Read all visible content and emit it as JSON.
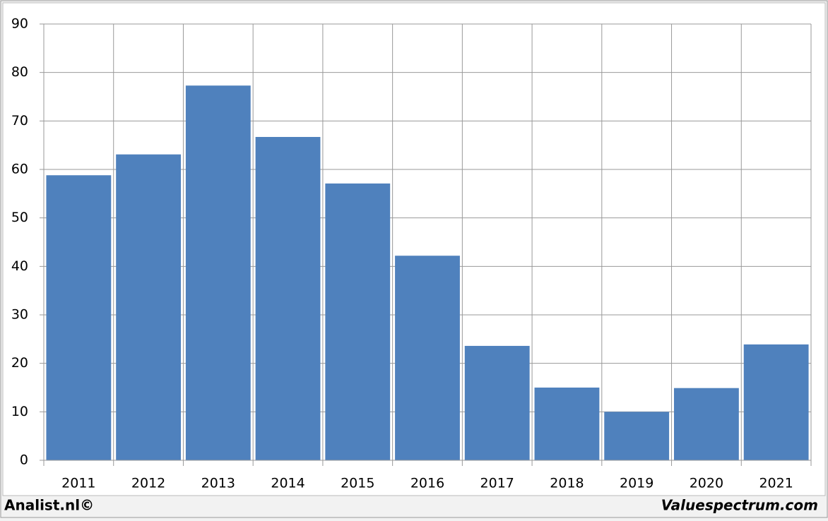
{
  "chart_data": {
    "type": "bar",
    "categories": [
      "2011",
      "2012",
      "2013",
      "2014",
      "2015",
      "2016",
      "2017",
      "2018",
      "2019",
      "2020",
      "2021"
    ],
    "values": [
      58.8,
      63.1,
      77.3,
      66.7,
      57.1,
      42.2,
      23.6,
      15.0,
      10.0,
      14.9,
      23.9
    ],
    "color": "#4f81bd",
    "ylim": [
      0,
      90
    ],
    "yticks": [
      0,
      10,
      20,
      30,
      40,
      50,
      60,
      70,
      80,
      90
    ],
    "grid": true
  },
  "footer": {
    "left": "Analist.nl©",
    "right": "Valuespectrum.com"
  }
}
